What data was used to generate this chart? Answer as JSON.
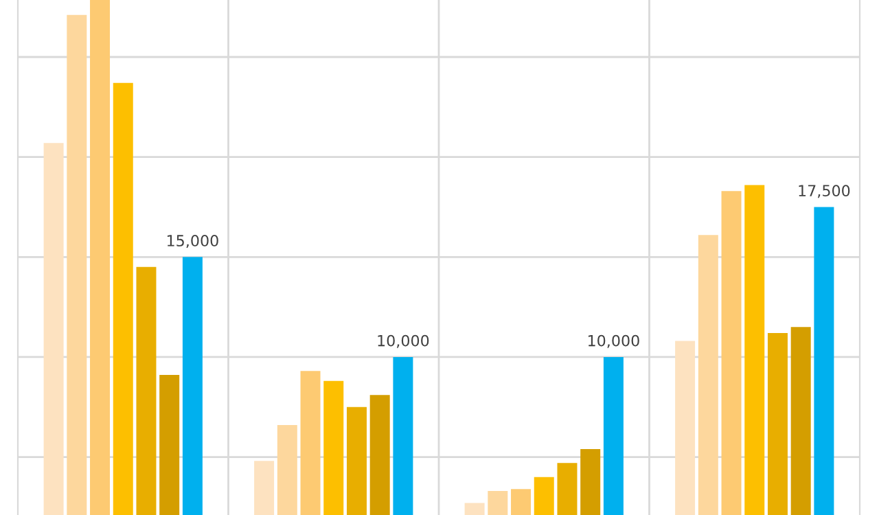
{
  "chart_data": {
    "type": "bar",
    "categories": [
      null,
      null,
      null,
      null
    ],
    "series": [
      {
        "color": "#fde2c0",
        "values": [
          20700,
          4800,
          2700,
          10800
        ]
      },
      {
        "color": "#fdd79d",
        "values": [
          27100,
          6600,
          3300,
          16100
        ]
      },
      {
        "color": "#fdca72",
        "values": [
          27850,
          9300,
          3400,
          18300
        ]
      },
      {
        "color": "#fdbf00",
        "values": [
          23700,
          8800,
          4000,
          18600
        ]
      },
      {
        "color": "#e8ae00",
        "values": [
          14500,
          7500,
          4700,
          11200
        ]
      },
      {
        "color": "#d49e00",
        "values": [
          9100,
          8100,
          5400,
          11500
        ]
      },
      {
        "color": "#00b0ee",
        "values": [
          15000,
          10000,
          10000,
          17500
        ],
        "value_labels": [
          "15,000",
          "10,000",
          "10,000",
          "17,500"
        ]
      }
    ],
    "ylim": [
      2100,
      27850
    ],
    "yticks": [
      {
        "value": 5000,
        "label": null
      },
      {
        "value": 10000,
        "label": null
      },
      {
        "value": 15000,
        "label": null
      },
      {
        "value": 20000,
        "label": null
      },
      {
        "value": 25000,
        "label": null
      }
    ],
    "grid": true
  }
}
